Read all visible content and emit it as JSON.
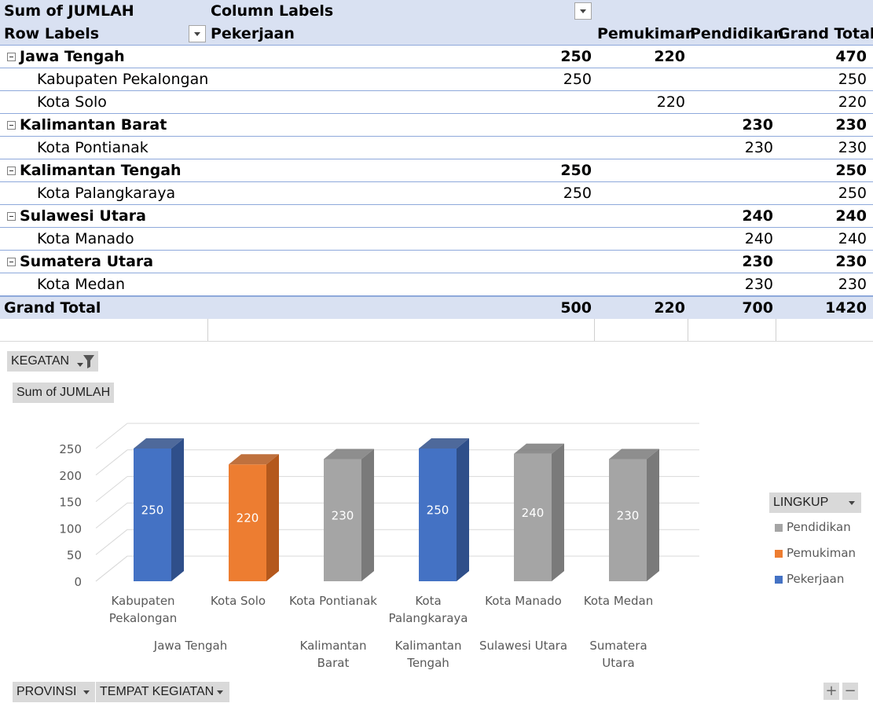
{
  "pivot": {
    "corner_label": "Sum of JUMLAH",
    "column_labels": "Column Labels",
    "row_labels": "Row Labels",
    "columns": [
      "Pekerjaan",
      "Pemukiman",
      "Pendidikan",
      "Grand Total"
    ],
    "rows": [
      {
        "level": 0,
        "label": "Jawa Tengah",
        "v1": "250",
        "v2": "220",
        "v3": "",
        "v4": "470"
      },
      {
        "level": 1,
        "label": "Kabupaten Pekalongan",
        "v1": "250",
        "v2": "",
        "v3": "",
        "v4": "250"
      },
      {
        "level": 1,
        "label": "Kota Solo",
        "v1": "",
        "v2": "220",
        "v3": "",
        "v4": "220"
      },
      {
        "level": 0,
        "label": "Kalimantan Barat",
        "v1": "",
        "v2": "",
        "v3": "230",
        "v4": "230"
      },
      {
        "level": 1,
        "label": "Kota Pontianak",
        "v1": "",
        "v2": "",
        "v3": "230",
        "v4": "230"
      },
      {
        "level": 0,
        "label": "Kalimantan Tengah",
        "v1": "250",
        "v2": "",
        "v3": "",
        "v4": "250"
      },
      {
        "level": 1,
        "label": "Kota Palangkaraya",
        "v1": "250",
        "v2": "",
        "v3": "",
        "v4": "250"
      },
      {
        "level": 0,
        "label": "Sulawesi Utara",
        "v1": "",
        "v2": "",
        "v3": "240",
        "v4": "240"
      },
      {
        "level": 1,
        "label": "Kota Manado",
        "v1": "",
        "v2": "",
        "v3": "240",
        "v4": "240"
      },
      {
        "level": 0,
        "label": "Sumatera Utara",
        "v1": "",
        "v2": "",
        "v3": "230",
        "v4": "230"
      },
      {
        "level": 1,
        "label": "Kota Medan",
        "v1": "",
        "v2": "",
        "v3": "230",
        "v4": "230"
      }
    ],
    "grand_total": {
      "label": "Grand Total",
      "v1": "500",
      "v2": "220",
      "v3": "700",
      "v4": "1420"
    }
  },
  "chart_controls": {
    "filter_button": "KEGATAN",
    "value_button": "Sum of JUMLAH",
    "legend_button": "LINGKUP",
    "axis_button_1": "PROVINSI",
    "axis_button_2": "TEMPAT KEGIATAN",
    "zoom_in": "+",
    "zoom_out": "−"
  },
  "chart_data": {
    "type": "bar",
    "categories": [
      "Kabupaten Pekalongan",
      "Kota Solo",
      "Kota Pontianak",
      "Kota Palangkaraya",
      "Kota Manado",
      "Kota Medan"
    ],
    "category_lines": [
      [
        "Kabupaten",
        "Pekalongan"
      ],
      [
        "Kota Solo"
      ],
      [
        "Kota Pontianak"
      ],
      [
        "Kota",
        "Palangkaraya"
      ],
      [
        "Kota Manado"
      ],
      [
        "Kota Medan"
      ]
    ],
    "groups": [
      {
        "label_lines": [
          "Jawa Tengah"
        ],
        "span": [
          0,
          1
        ]
      },
      {
        "label_lines": [
          "Kalimantan",
          "Barat"
        ],
        "span": [
          2,
          2
        ]
      },
      {
        "label_lines": [
          "Kalimantan",
          "Tengah"
        ],
        "span": [
          3,
          3
        ]
      },
      {
        "label_lines": [
          "Sulawesi Utara"
        ],
        "span": [
          4,
          4
        ]
      },
      {
        "label_lines": [
          "Sumatera",
          "Utara"
        ],
        "span": [
          5,
          5
        ]
      }
    ],
    "values": [
      250,
      220,
      230,
      250,
      240,
      230
    ],
    "bar_series": [
      "Pekerjaan",
      "Pemukiman",
      "Pendidikan",
      "Pekerjaan",
      "Pendidikan",
      "Pendidikan"
    ],
    "series": [
      {
        "name": "Pendidikan",
        "color": "#a5a5a5",
        "side": "#7a7a7a"
      },
      {
        "name": "Pemukiman",
        "color": "#ed7d31",
        "side": "#b4581c"
      },
      {
        "name": "Pekerjaan",
        "color": "#4472c4",
        "side": "#2f4f8a"
      }
    ],
    "y_ticks": [
      0,
      50,
      100,
      150,
      200,
      250
    ],
    "ylim": [
      0,
      250
    ],
    "three_d": true,
    "grid": true,
    "legend_position": "right"
  }
}
